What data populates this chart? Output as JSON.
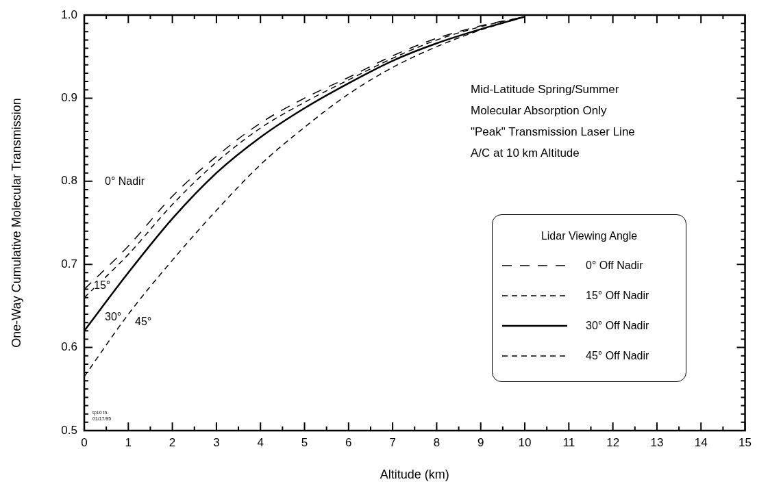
{
  "chart_data": {
    "type": "line",
    "xlabel": "Altitude (km)",
    "ylabel": "One-Way Cumulative Molecular Transmission",
    "legend_title": "Lidar Viewing Angle",
    "legend": "right",
    "x": [
      0,
      1,
      2,
      3,
      4,
      5,
      6,
      7,
      8,
      9,
      10
    ],
    "series": [
      {
        "name": "0° Off Nadir",
        "color": "#000000",
        "line_style": "dashed",
        "values": [
          0.67,
          0.722,
          0.782,
          0.83,
          0.87,
          0.9,
          0.925,
          0.951,
          0.972,
          0.987,
          0.998
        ]
      },
      {
        "name": "15° Off Nadir",
        "color": "#000000",
        "line_style": "dashed",
        "values": [
          0.66,
          0.712,
          0.772,
          0.823,
          0.864,
          0.895,
          0.922,
          0.948,
          0.97,
          0.986,
          0.998
        ]
      },
      {
        "name": "30° Off Nadir",
        "color": "#000000",
        "line_style": "solid",
        "values": [
          0.62,
          0.69,
          0.755,
          0.81,
          0.853,
          0.888,
          0.918,
          0.945,
          0.966,
          0.983,
          0.998
        ]
      },
      {
        "name": "45° Off Nadir",
        "color": "#000000",
        "line_style": "dashed",
        "values": [
          0.565,
          0.64,
          0.705,
          0.765,
          0.82,
          0.865,
          0.905,
          0.937,
          0.962,
          0.982,
          0.998
        ]
      }
    ],
    "xlim": [
      0,
      15
    ],
    "ylim": [
      0.5,
      1.0
    ],
    "xticks": [
      0,
      {
        "value": 0.5,
        "label": null
      },
      1,
      {
        "value": 1.5,
        "label": null
      },
      2,
      {
        "value": 2.5,
        "label": null
      },
      3,
      {
        "value": 3.5,
        "label": null
      },
      4,
      {
        "value": 4.5,
        "label": null
      },
      5,
      {
        "value": 5.5,
        "label": null
      },
      6,
      {
        "value": 6.5,
        "label": null
      },
      7,
      {
        "value": 7.5,
        "label": null
      },
      8,
      {
        "value": 8.5,
        "label": null
      },
      9,
      {
        "value": 9.5,
        "label": null
      },
      10,
      {
        "value": 10.5,
        "label": null
      },
      11,
      {
        "value": 11.5,
        "label": null
      },
      12,
      {
        "value": 12.5,
        "label": null
      },
      13,
      {
        "value": 13.5,
        "label": null
      },
      14,
      {
        "value": 14.5,
        "label": null
      },
      15
    ],
    "yticks": [
      0.5,
      {
        "value": 0.51,
        "label": null
      },
      {
        "value": 0.52,
        "label": null
      },
      {
        "value": 0.53,
        "label": null
      },
      {
        "value": 0.54,
        "label": null
      },
      {
        "value": 0.55,
        "label": null
      },
      {
        "value": 0.56,
        "label": null
      },
      {
        "value": 0.57,
        "label": null
      },
      {
        "value": 0.58,
        "label": null
      },
      {
        "value": 0.59,
        "label": null
      },
      0.6,
      {
        "value": 0.61,
        "label": null
      },
      {
        "value": 0.62,
        "label": null
      },
      {
        "value": 0.63,
        "label": null
      },
      {
        "value": 0.64,
        "label": null
      },
      {
        "value": 0.65,
        "label": null
      },
      {
        "value": 0.66,
        "label": null
      },
      {
        "value": 0.67,
        "label": null
      },
      {
        "value": 0.68,
        "label": null
      },
      {
        "value": 0.69,
        "label": null
      },
      0.7,
      {
        "value": 0.71,
        "label": null
      },
      {
        "value": 0.72,
        "label": null
      },
      {
        "value": 0.73,
        "label": null
      },
      {
        "value": 0.74,
        "label": null
      },
      {
        "value": 0.75,
        "label": null
      },
      {
        "value": 0.76,
        "label": null
      },
      {
        "value": 0.77,
        "label": null
      },
      {
        "value": 0.78,
        "label": null
      },
      {
        "value": 0.79,
        "label": null
      },
      0.8,
      {
        "value": 0.81,
        "label": null
      },
      {
        "value": 0.82,
        "label": null
      },
      {
        "value": 0.83,
        "label": null
      },
      {
        "value": 0.84,
        "label": null
      },
      {
        "value": 0.85,
        "label": null
      },
      {
        "value": 0.86,
        "label": null
      },
      {
        "value": 0.87,
        "label": null
      },
      {
        "value": 0.88,
        "label": null
      },
      {
        "value": 0.89,
        "label": null
      },
      0.9,
      {
        "value": 0.91,
        "label": null
      },
      {
        "value": 0.92,
        "label": null
      },
      {
        "value": 0.93,
        "label": null
      },
      {
        "value": 0.94,
        "label": null
      },
      {
        "value": 0.95,
        "label": null
      },
      {
        "value": 0.96,
        "label": null
      },
      {
        "value": 0.97,
        "label": null
      },
      {
        "value": 0.98,
        "label": null
      },
      {
        "value": 0.99,
        "label": null
      },
      {
        "value": 1.0,
        "label": "1.0"
      }
    ],
    "annotations": [
      "Mid-Latitude Spring/Summer",
      "Molecular Absorption Only",
      "\"Peak\" Transmission Laser Line",
      "A/C at 10 km Altitude",
      "tp10 th.",
      "01/17/95",
      "0° Nadir",
      "15°",
      "30°",
      "45°"
    ]
  }
}
